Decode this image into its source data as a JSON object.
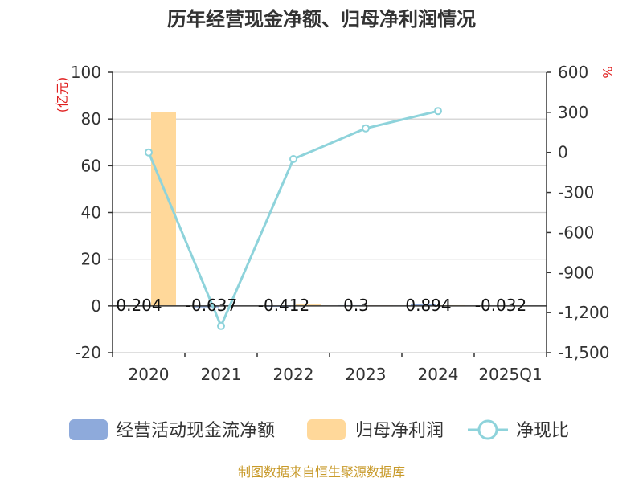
{
  "colors": {
    "cash_flow": "#8eaadb",
    "net_profit": "#ffd89a",
    "ratio_line": "#8ed3db",
    "grid": "#cccccc",
    "axis": "#333333",
    "unit": "#e02020",
    "source": "#c89a2a"
  },
  "chart_data": {
    "type": "bar",
    "title": "历年经营现金净额、归母净利润情况",
    "categories": [
      "2020",
      "2021",
      "2022",
      "2023",
      "2024",
      "2025Q1"
    ],
    "series": [
      {
        "name": "经营活动现金流净额",
        "type": "bar",
        "axis": "left",
        "values": [
          0.204,
          -0.637,
          -0.412,
          0.3,
          0.894,
          -0.032
        ]
      },
      {
        "name": "归母净利润",
        "type": "bar",
        "axis": "left",
        "values": [
          83,
          0.05,
          0.6,
          0.2,
          0.3,
          0.0
        ]
      },
      {
        "name": "净现比",
        "type": "line",
        "axis": "right",
        "values": [
          0,
          -1300,
          -50,
          180,
          310,
          null
        ]
      }
    ],
    "data_labels": [
      "0.204",
      "-0.637",
      "-0.412",
      "0.3",
      "0.894",
      "-0.032"
    ],
    "left_axis": {
      "unit": "(亿元)",
      "min": -20,
      "max": 100,
      "ticks": [
        -20,
        0,
        20,
        40,
        60,
        80,
        100
      ]
    },
    "right_axis": {
      "unit": "%",
      "min": -1500,
      "max": 600,
      "ticks": [
        "-1,500",
        "-1,200",
        "-900",
        "-600",
        "-300",
        "0",
        "300",
        "600"
      ],
      "tick_values": [
        -1500,
        -1200,
        -900,
        -600,
        -300,
        0,
        300,
        600
      ]
    },
    "legend": [
      "经营活动现金流净额",
      "归母净利润",
      "净现比"
    ],
    "source": "制图数据来自恒生聚源数据库"
  }
}
